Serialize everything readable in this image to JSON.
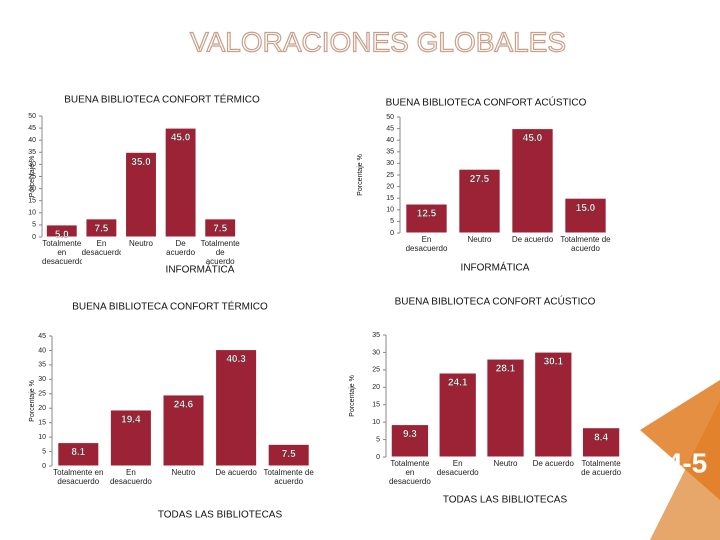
{
  "title": "VALORACIONES GLOBALES",
  "page_number": "4-5",
  "chart_data": [
    {
      "type": "bar",
      "title": "BUENA BIBLIOTECA CONFORT TÉRMICO",
      "subtitle": "INFORMÁTICA",
      "y_label": "Porcentaje %",
      "categories": [
        "Totalmente en desacuerdo",
        "En desacuerdo",
        "Neutro",
        "De acuerdo",
        "Totalmente de acuerdo"
      ],
      "values": [
        5,
        7.5,
        35,
        45,
        7.5
      ],
      "value_labels": [
        "5.0",
        "7.5",
        "35.0",
        "45.0",
        "7.5"
      ],
      "color": "#9b2335",
      "ylim": [
        0,
        50
      ],
      "yticks": [
        0,
        5,
        10,
        15,
        20,
        25,
        30,
        35,
        40,
        45,
        50
      ]
    },
    {
      "type": "bar",
      "title": "BUENA BIBLIOTECA CONFORT ACÚSTICO",
      "subtitle": "INFORMÁTICA",
      "y_label": "Porcentaje %",
      "categories": [
        "En desacuerdo",
        "Neutro",
        "De acuerdo",
        "Totalmente de acuerdo"
      ],
      "values": [
        12.5,
        27.5,
        45,
        15
      ],
      "value_labels": [
        "12.5",
        "27.5",
        "45.0",
        "15.0"
      ],
      "color": "#9b2335",
      "ylim": [
        0,
        50
      ],
      "yticks": [
        0,
        5,
        10,
        15,
        20,
        25,
        30,
        35,
        40,
        45,
        50
      ]
    },
    {
      "type": "bar",
      "title": "BUENA BIBLIOTECA CONFORT TÉRMICO",
      "subtitle": "TODAS LAS BIBLIOTECAS",
      "y_label": "Porcentaje %",
      "categories": [
        "Totalmente en desacuerdo",
        "En desacuerdo",
        "Neutro",
        "De acuerdo",
        "Totalmente de acuerdo"
      ],
      "values": [
        8.1,
        19.4,
        24.6,
        40.3,
        7.5
      ],
      "color": "#9b2335",
      "ylim": [
        0,
        45
      ],
      "yticks": [
        0,
        5,
        10,
        15,
        20,
        25,
        30,
        35,
        40,
        45
      ]
    },
    {
      "type": "bar",
      "title": "BUENA BIBLIOTECA CONFORT ACÚSTICO",
      "subtitle": "TODAS LAS BIBLIOTECAS",
      "y_label": "Porcentaje %",
      "categories": [
        "Totalmente en desacuerdo",
        "En desacuerdo",
        "Neutro",
        "De acuerdo",
        "Totalmente de acuerdo"
      ],
      "values": [
        9.3,
        24.1,
        28.1,
        30.1,
        8.4
      ],
      "color": "#9b2335",
      "ylim": [
        0,
        35
      ],
      "yticks": [
        0,
        5,
        10,
        15,
        20,
        25,
        30,
        35
      ]
    }
  ]
}
